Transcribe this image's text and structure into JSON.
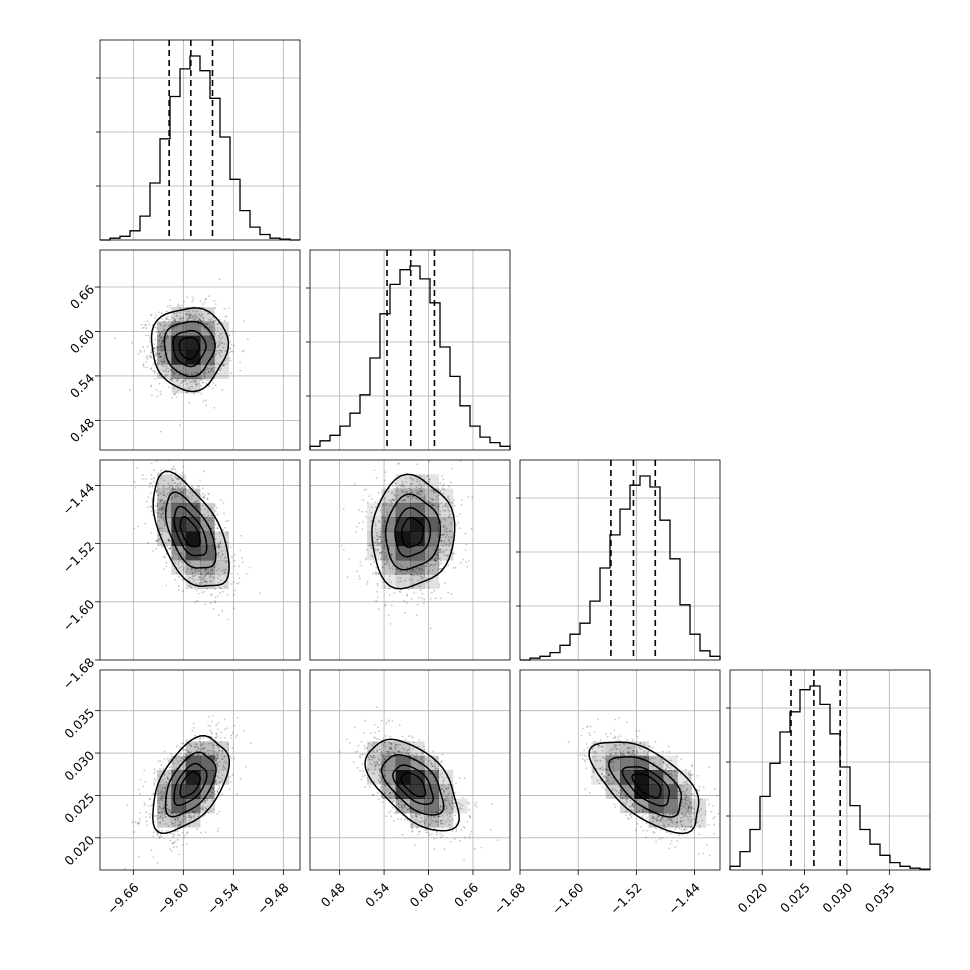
{
  "chart_data": {
    "type": "corner",
    "parameters": [
      {
        "range": [
          -9.7,
          -9.46
        ],
        "ticks": [
          "−9.66",
          "−9.60",
          "−9.54",
          "−9.48"
        ],
        "tick_values": [
          -9.66,
          -9.6,
          -9.54,
          -9.48
        ],
        "quantiles": [
          -9.617,
          -9.591,
          -9.565
        ],
        "hist": [
          0.0,
          0.01,
          0.02,
          0.05,
          0.13,
          0.31,
          0.55,
          0.78,
          0.93,
          1.0,
          0.92,
          0.77,
          0.56,
          0.33,
          0.16,
          0.07,
          0.03,
          0.01,
          0.005,
          0.0
        ]
      },
      {
        "range": [
          0.44,
          0.71
        ],
        "ticks": [
          "0.48",
          "0.54",
          "0.60",
          "0.66"
        ],
        "tick_values": [
          0.48,
          0.54,
          0.6,
          0.66
        ],
        "quantiles": [
          0.544,
          0.576,
          0.608
        ],
        "hist": [
          0.02,
          0.05,
          0.08,
          0.13,
          0.2,
          0.3,
          0.5,
          0.74,
          0.9,
          0.98,
          1.0,
          0.93,
          0.8,
          0.56,
          0.4,
          0.24,
          0.13,
          0.07,
          0.04,
          0.02
        ]
      },
      {
        "range": [
          -1.68,
          -1.405
        ],
        "ticks": [
          "−1.68",
          "−1.60",
          "−1.52",
          "−1.44"
        ],
        "tick_values": [
          -1.68,
          -1.6,
          -1.52,
          -1.44
        ],
        "quantiles": [
          -1.555,
          -1.524,
          -1.494
        ],
        "hist": [
          0.0,
          0.01,
          0.02,
          0.04,
          0.08,
          0.14,
          0.2,
          0.32,
          0.5,
          0.68,
          0.82,
          0.95,
          1.0,
          0.94,
          0.76,
          0.55,
          0.3,
          0.14,
          0.05,
          0.02
        ]
      },
      {
        "range": [
          0.0162,
          0.0398
        ],
        "ticks": [
          "0.020",
          "0.025",
          "0.030",
          "0.035"
        ],
        "tick_values": [
          0.02,
          0.025,
          0.03,
          0.035
        ],
        "quantiles": [
          0.0234,
          0.0261,
          0.0292
        ],
        "hist": [
          0.02,
          0.1,
          0.22,
          0.4,
          0.58,
          0.75,
          0.86,
          0.98,
          1.0,
          0.9,
          0.74,
          0.56,
          0.35,
          0.22,
          0.14,
          0.08,
          0.04,
          0.02,
          0.01,
          0.005
        ]
      }
    ],
    "pairs": [
      {
        "x": 0,
        "y": 1,
        "mean": [
          -9.593,
          0.578
        ],
        "sd": [
          0.022,
          0.027
        ],
        "corr": 0.0
      },
      {
        "x": 0,
        "y": 2,
        "mean": [
          -9.592,
          -1.505
        ],
        "sd": [
          0.022,
          0.038
        ],
        "corr": -0.55
      },
      {
        "x": 1,
        "y": 2,
        "mean": [
          0.578,
          -1.505
        ],
        "sd": [
          0.027,
          0.037
        ],
        "corr": 0.05
      },
      {
        "x": 0,
        "y": 3,
        "mean": [
          -9.592,
          0.0263
        ],
        "sd": [
          0.022,
          0.0027
        ],
        "corr": 0.5
      },
      {
        "x": 1,
        "y": 3,
        "mean": [
          0.58,
          0.0263
        ],
        "sd": [
          0.03,
          0.0026
        ],
        "corr": -0.55
      },
      {
        "x": 2,
        "y": 3,
        "mean": [
          -1.505,
          0.0262
        ],
        "sd": [
          0.036,
          0.0026
        ],
        "corr": -0.6
      }
    ],
    "contour_levels_sigma": [
      0.5,
      1.0,
      1.5,
      2.0
    ],
    "grid": true,
    "colors": {
      "scatter": "#7f7f7f",
      "density": "#000000",
      "lines": "#000000"
    }
  }
}
